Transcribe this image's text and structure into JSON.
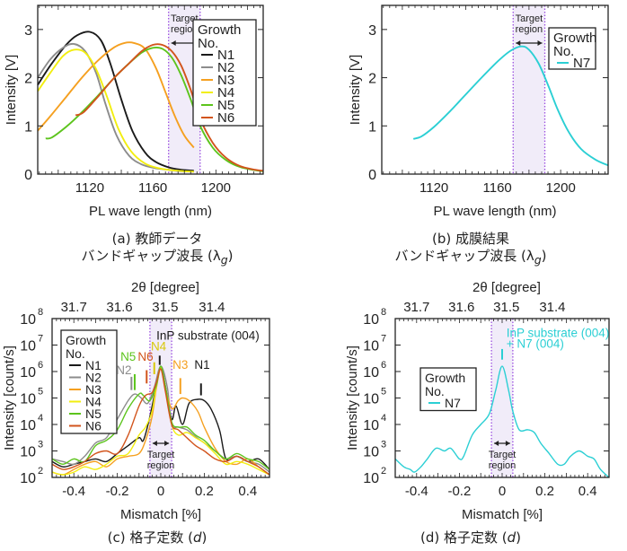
{
  "captions": {
    "a": {
      "line1": "(a) 教師データ",
      "line2": "バンドギャップ波長 (λ",
      "sub": "g",
      "close": ")"
    },
    "b": {
      "line1": "(b) 成膜結果",
      "line2": "バンドギャップ波長 (λ",
      "sub": "g",
      "close": ")"
    },
    "c": {
      "prefix": "(c) 格子定数 (",
      "var": "d",
      "close": ")"
    },
    "d": {
      "prefix": "(d) 格子定数 (",
      "var": "d",
      "close": ")"
    }
  },
  "colors": {
    "N1": "#1a1a1a",
    "N2": "#8c8c8c",
    "N3": "#f5a020",
    "N4": "#f2ee10",
    "N5": "#5cc41c",
    "N6": "#d2541c",
    "N7": "#2bcfd4",
    "target_fill": "#f1ecf9",
    "target_border": "#9b4fe0"
  },
  "chart_data": [
    {
      "id": "a",
      "type": "line",
      "title": "",
      "xlabel": "PL wave length (nm)",
      "ylabel": "Intensity [V]",
      "xlim": [
        1087,
        1230
      ],
      "ylim": [
        0,
        3.5
      ],
      "xticks": [
        1120,
        1160,
        1200
      ],
      "yticks": [
        0,
        1,
        2,
        3
      ],
      "target_region": {
        "x0": 1170,
        "x1": 1190,
        "label_line1": "Target",
        "label_line2": "region"
      },
      "legend": {
        "title_line1": "Growth",
        "title_line2": "No.",
        "entries": [
          "N1",
          "N2",
          "N3",
          "N4",
          "N5",
          "N6"
        ],
        "placement": "top-right"
      },
      "series": [
        {
          "name": "N1",
          "x": [
            1087,
            1095,
            1105,
            1112,
            1120,
            1127,
            1133,
            1140,
            1147,
            1155,
            1162,
            1170,
            1178,
            1186
          ],
          "y": [
            1.85,
            2.25,
            2.68,
            2.88,
            2.95,
            2.78,
            2.3,
            1.55,
            0.9,
            0.45,
            0.25,
            0.14,
            0.09,
            0.07
          ]
        },
        {
          "name": "N2",
          "x": [
            1087,
            1095,
            1103,
            1110,
            1117,
            1124,
            1130,
            1137,
            1145,
            1153,
            1162,
            1170,
            1178,
            1186
          ],
          "y": [
            2.0,
            2.38,
            2.62,
            2.7,
            2.55,
            2.1,
            1.45,
            0.8,
            0.38,
            0.2,
            0.12,
            0.09,
            0.06,
            0.05
          ]
        },
        {
          "name": "N3",
          "x": [
            1087,
            1095,
            1105,
            1115,
            1125,
            1135,
            1142,
            1148,
            1155,
            1162,
            1168,
            1174,
            1180,
            1186
          ],
          "y": [
            0.9,
            1.2,
            1.6,
            2.0,
            2.35,
            2.62,
            2.72,
            2.72,
            2.6,
            2.2,
            1.7,
            1.2,
            0.8,
            0.55
          ]
        },
        {
          "name": "N4",
          "x": [
            1087,
            1095,
            1103,
            1110,
            1117,
            1124,
            1131,
            1138,
            1146,
            1155,
            1164,
            1172,
            1180,
            1186
          ],
          "y": [
            1.72,
            2.1,
            2.45,
            2.58,
            2.52,
            2.18,
            1.6,
            0.95,
            0.48,
            0.22,
            0.12,
            0.08,
            0.06,
            0.05
          ]
        },
        {
          "name": "N5",
          "x": [
            1092,
            1096,
            1105,
            1115,
            1125,
            1135,
            1145,
            1153,
            1160,
            1166,
            1172,
            1178,
            1184,
            1190,
            1198,
            1206,
            1215,
            1225,
            1230
          ],
          "y": [
            0.74,
            0.76,
            0.98,
            1.28,
            1.62,
            1.98,
            2.3,
            2.52,
            2.62,
            2.6,
            2.42,
            2.05,
            1.55,
            1.0,
            0.55,
            0.3,
            0.15,
            0.08,
            0.06
          ]
        },
        {
          "name": "N6",
          "x": [
            1111,
            1116,
            1125,
            1135,
            1145,
            1153,
            1160,
            1166,
            1172,
            1178,
            1184,
            1190,
            1198,
            1206,
            1215,
            1225,
            1230
          ],
          "y": [
            1.22,
            1.28,
            1.6,
            1.98,
            2.3,
            2.55,
            2.68,
            2.68,
            2.55,
            2.25,
            1.75,
            1.15,
            0.65,
            0.35,
            0.17,
            0.09,
            0.07
          ]
        }
      ]
    },
    {
      "id": "b",
      "type": "line",
      "title": "",
      "xlabel": "PL wave length (nm)",
      "ylabel": "Intensity [V]",
      "xlim": [
        1087,
        1230
      ],
      "ylim": [
        0,
        3.5
      ],
      "xticks": [
        1120,
        1160,
        1200
      ],
      "yticks": [
        0,
        1,
        2,
        3
      ],
      "target_region": {
        "x0": 1170,
        "x1": 1190,
        "label_line1": "Target",
        "label_line2": "region"
      },
      "legend": {
        "title_line1": "Growth",
        "title_line2": "No.",
        "entries": [
          "N7"
        ],
        "placement": "top-right"
      },
      "series": [
        {
          "name": "N7",
          "x": [
            1107,
            1112,
            1120,
            1130,
            1140,
            1150,
            1160,
            1168,
            1175,
            1180,
            1186,
            1192,
            1198,
            1205,
            1213,
            1222,
            1230
          ],
          "y": [
            0.73,
            0.78,
            0.98,
            1.3,
            1.65,
            2.0,
            2.33,
            2.55,
            2.65,
            2.58,
            2.3,
            1.85,
            1.35,
            0.88,
            0.52,
            0.3,
            0.18
          ]
        }
      ]
    },
    {
      "id": "c",
      "type": "line",
      "title": "",
      "xlabel": "Mismatch [%]",
      "ylabel": "Intensity [count/s]",
      "top_xlabel": "2θ [degree]",
      "top_xticks": [
        "31.7",
        "31.6",
        "31.5",
        "31.4"
      ],
      "xlim": [
        -0.5,
        0.5
      ],
      "ylim_log10": [
        2,
        8
      ],
      "yscale": "log",
      "xticks": [
        -0.4,
        -0.2,
        0,
        0.2,
        0.4
      ],
      "xtick_labels": [
        "-0.4",
        "-0.2",
        "0",
        "0.2",
        "0.4"
      ],
      "yticks_exp": [
        2,
        3,
        4,
        5,
        6,
        7,
        8
      ],
      "target_region": {
        "x0": -0.05,
        "x1": 0.05,
        "label_line1": "Target",
        "label_line2": "region"
      },
      "legend": {
        "title_line1": "Growth",
        "title_line2": "No.",
        "entries": [
          "N1",
          "N2",
          "N3",
          "N4",
          "N5",
          "N6"
        ],
        "placement": "top-left"
      },
      "annotations": [
        {
          "text": "InP substrate (004)",
          "x": -0.02,
          "log10y": 7.2,
          "color": "#1a1a1a"
        },
        {
          "text": "N4",
          "x": -0.01,
          "log10y": 6.8,
          "color": "#d8c80a"
        },
        {
          "text": "N6",
          "x": -0.07,
          "log10y": 6.4,
          "color": "#d2541c"
        },
        {
          "text": "N5",
          "x": -0.15,
          "log10y": 6.4,
          "color": "#5cc41c"
        },
        {
          "text": "N2",
          "x": -0.17,
          "log10y": 5.9,
          "color": "#8c8c8c"
        },
        {
          "text": "N3",
          "x": 0.09,
          "log10y": 6.1,
          "color": "#f5a020"
        },
        {
          "text": "N1",
          "x": 0.19,
          "log10y": 6.1,
          "color": "#1a1a1a"
        }
      ],
      "series": [
        {
          "name": "N1",
          "x": [
            -0.5,
            -0.45,
            -0.4,
            -0.35,
            -0.3,
            -0.25,
            -0.2,
            -0.15,
            -0.1,
            -0.08,
            -0.05,
            -0.02,
            0,
            0.02,
            0.05,
            0.07,
            0.1,
            0.13,
            0.17,
            0.2,
            0.23,
            0.27,
            0.3,
            0.35,
            0.4,
            0.45,
            0.5
          ],
          "log10y": [
            2.6,
            2.4,
            2.5,
            2.6,
            2.7,
            2.6,
            2.9,
            3.2,
            3.5,
            3.4,
            4.3,
            5.5,
            6.2,
            5.5,
            4.2,
            4.7,
            4.0,
            4.8,
            4.95,
            4.9,
            4.6,
            3.8,
            2.7,
            2.8,
            2.6,
            2.7,
            2.3
          ]
        },
        {
          "name": "N2",
          "x": [
            -0.5,
            -0.45,
            -0.4,
            -0.35,
            -0.3,
            -0.25,
            -0.2,
            -0.15,
            -0.12,
            -0.09,
            -0.06,
            -0.03,
            0,
            0.03,
            0.05,
            0.08,
            0.12,
            0.15,
            0.2,
            0.25,
            0.3,
            0.35,
            0.4,
            0.45,
            0.5
          ],
          "log10y": [
            2.7,
            2.6,
            2.5,
            2.8,
            3.3,
            3.5,
            4.2,
            4.9,
            5.15,
            5.0,
            4.8,
            5.4,
            6.2,
            5.4,
            4.0,
            3.9,
            3.8,
            3.6,
            3.3,
            3.0,
            2.7,
            2.8,
            2.6,
            2.5,
            2.2
          ]
        },
        {
          "name": "N3",
          "x": [
            -0.5,
            -0.45,
            -0.4,
            -0.35,
            -0.3,
            -0.25,
            -0.2,
            -0.15,
            -0.1,
            -0.07,
            -0.04,
            -0.02,
            0,
            0.02,
            0.05,
            0.08,
            0.1,
            0.13,
            0.17,
            0.2,
            0.25,
            0.3,
            0.35,
            0.4,
            0.45,
            0.5
          ],
          "log10y": [
            2.2,
            2.1,
            2.3,
            2.5,
            2.6,
            2.4,
            2.7,
            2.8,
            2.9,
            3.4,
            4.3,
            5.4,
            6.1,
            5.4,
            4.6,
            4.9,
            5.0,
            4.9,
            4.5,
            3.9,
            3.1,
            2.6,
            2.5,
            2.7,
            2.4,
            2.1
          ]
        },
        {
          "name": "N4",
          "x": [
            -0.5,
            -0.45,
            -0.4,
            -0.35,
            -0.3,
            -0.25,
            -0.2,
            -0.15,
            -0.1,
            -0.07,
            -0.04,
            -0.02,
            0,
            0.02,
            0.05,
            0.08,
            0.12,
            0.16,
            0.2,
            0.25,
            0.3,
            0.35,
            0.4,
            0.45,
            0.5
          ],
          "log10y": [
            2.2,
            2.1,
            2.2,
            2.4,
            2.3,
            2.5,
            2.8,
            2.9,
            3.6,
            3.9,
            4.5,
            5.5,
            6.15,
            5.4,
            4.0,
            3.6,
            3.7,
            3.5,
            3.3,
            2.9,
            2.5,
            2.6,
            2.5,
            2.3,
            2.1
          ]
        },
        {
          "name": "N5",
          "x": [
            -0.5,
            -0.45,
            -0.4,
            -0.35,
            -0.3,
            -0.25,
            -0.2,
            -0.15,
            -0.1,
            -0.08,
            -0.05,
            -0.02,
            0,
            0.02,
            0.05,
            0.08,
            0.12,
            0.16,
            0.2,
            0.25,
            0.3,
            0.35,
            0.4,
            0.45,
            0.5
          ],
          "log10y": [
            2.7,
            2.5,
            2.7,
            2.6,
            3.2,
            3.4,
            3.8,
            4.6,
            5.15,
            5.1,
            4.9,
            5.5,
            6.2,
            5.5,
            4.1,
            3.9,
            3.9,
            3.6,
            3.4,
            3.0,
            2.7,
            2.9,
            2.7,
            2.6,
            2.3
          ]
        },
        {
          "name": "N6",
          "x": [
            -0.5,
            -0.45,
            -0.4,
            -0.35,
            -0.3,
            -0.25,
            -0.2,
            -0.15,
            -0.1,
            -0.07,
            -0.04,
            -0.02,
            0,
            0.02,
            0.05,
            0.08,
            0.12,
            0.16,
            0.2,
            0.25,
            0.3,
            0.35,
            0.4,
            0.45,
            0.5
          ],
          "log10y": [
            2.5,
            2.3,
            2.4,
            2.6,
            2.9,
            3.0,
            2.9,
            3.6,
            4.7,
            5.1,
            5.2,
            5.6,
            6.1,
            5.3,
            4.0,
            3.8,
            3.5,
            3.2,
            3.0,
            2.7,
            2.6,
            2.8,
            2.6,
            2.4,
            2.1
          ]
        }
      ]
    },
    {
      "id": "d",
      "type": "line",
      "title": "",
      "xlabel": "Mismatch [%]",
      "ylabel": "Intensity [count/s]",
      "top_xlabel": "2θ [degree]",
      "top_xticks": [
        "31.7",
        "31.6",
        "31.5",
        "31.4"
      ],
      "xlim": [
        -0.5,
        0.5
      ],
      "ylim_log10": [
        2,
        8
      ],
      "yscale": "log",
      "xticks": [
        -0.4,
        -0.2,
        0,
        0.2,
        0.4
      ],
      "xtick_labels": [
        "-0.4",
        "-0.2",
        "0",
        "0.2",
        "0.4"
      ],
      "yticks_exp": [
        2,
        3,
        4,
        5,
        6,
        7,
        8
      ],
      "target_region": {
        "x0": -0.05,
        "x1": 0.05,
        "label_line1": "Target",
        "label_line2": "region"
      },
      "legend": {
        "title_line1": "Growth",
        "title_line2": "No.",
        "entries": [
          "N7"
        ],
        "placement": "top-left"
      },
      "annotations": [
        {
          "text": "InP substrate (004)",
          "x": 0.02,
          "log10y": 7.3,
          "color": "#2bcfd4"
        },
        {
          "text": "+ N7 (004)",
          "x": 0.02,
          "log10y": 6.9,
          "color": "#2bcfd4"
        }
      ],
      "series": [
        {
          "name": "N7",
          "x": [
            -0.5,
            -0.46,
            -0.43,
            -0.41,
            -0.38,
            -0.35,
            -0.31,
            -0.27,
            -0.24,
            -0.2,
            -0.18,
            -0.14,
            -0.1,
            -0.06,
            -0.03,
            0,
            0.03,
            0.05,
            0.08,
            0.12,
            0.15,
            0.18,
            0.22,
            0.26,
            0.29,
            0.32,
            0.36,
            0.4,
            0.43,
            0.46,
            0.5
          ],
          "log10y": [
            2.7,
            2.4,
            2.3,
            2.2,
            2.4,
            2.7,
            3.1,
            3.0,
            3.1,
            2.7,
            2.8,
            3.6,
            4.0,
            4.4,
            5.3,
            6.2,
            5.3,
            4.5,
            3.8,
            3.8,
            3.7,
            3.3,
            2.9,
            2.5,
            2.5,
            2.8,
            3.0,
            2.8,
            2.7,
            2.3,
            2.0
          ]
        }
      ]
    }
  ]
}
